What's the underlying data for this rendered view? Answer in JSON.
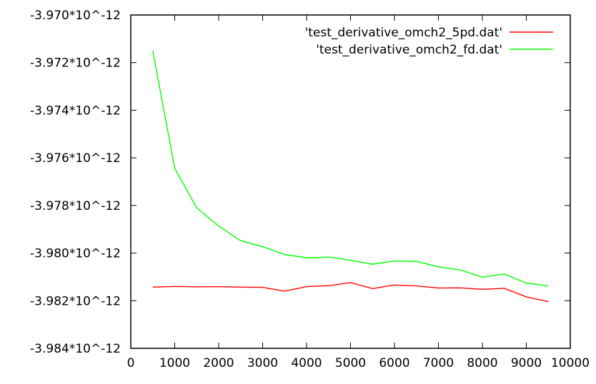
{
  "chart_data": {
    "type": "line",
    "title": "",
    "xlabel": "",
    "ylabel": "",
    "xlim": [
      0,
      10000
    ],
    "ylim": [
      -3.984e-12,
      -3.97e-12
    ],
    "grid": false,
    "legend_position": "top-right",
    "x_ticks": [
      {
        "value": 0,
        "label": "0"
      },
      {
        "value": 1000,
        "label": "1000"
      },
      {
        "value": 2000,
        "label": "2000"
      },
      {
        "value": 3000,
        "label": "3000"
      },
      {
        "value": 4000,
        "label": "4000"
      },
      {
        "value": 5000,
        "label": "5000"
      },
      {
        "value": 6000,
        "label": "6000"
      },
      {
        "value": 7000,
        "label": "7000"
      },
      {
        "value": 8000,
        "label": "8000"
      },
      {
        "value": 9000,
        "label": "9000"
      },
      {
        "value": 10000,
        "label": "10000"
      }
    ],
    "y_ticks": [
      {
        "value": -3.97e-12,
        "label": "-3.970*10^-12"
      },
      {
        "value": -3.972e-12,
        "label": "-3.972*10^-12"
      },
      {
        "value": -3.974e-12,
        "label": "-3.974*10^-12"
      },
      {
        "value": -3.976e-12,
        "label": "-3.976*10^-12"
      },
      {
        "value": -3.978e-12,
        "label": "-3.978*10^-12"
      },
      {
        "value": -3.98e-12,
        "label": "-3.980*10^-12"
      },
      {
        "value": -3.982e-12,
        "label": "-3.982*10^-12"
      },
      {
        "value": -3.984e-12,
        "label": "-3.984*10^-12"
      }
    ],
    "x": [
      500,
      1000,
      1500,
      2000,
      2500,
      3000,
      3500,
      4000,
      4500,
      5000,
      5500,
      6000,
      6500,
      7000,
      7500,
      8000,
      8500,
      9000,
      9500
    ],
    "series": [
      {
        "name": "'test_derivative_omch2_5pd.dat'",
        "color": "#ff0000",
        "values": [
          -3.98143e-12,
          -3.9814e-12,
          -3.98142e-12,
          -3.98141e-12,
          -3.98143e-12,
          -3.98144e-12,
          -3.9816e-12,
          -3.98141e-12,
          -3.98137e-12,
          -3.98124e-12,
          -3.98149e-12,
          -3.98134e-12,
          -3.98138e-12,
          -3.98147e-12,
          -3.98146e-12,
          -3.98152e-12,
          -3.98148e-12,
          -3.98184e-12,
          -3.98204e-12
        ]
      },
      {
        "name": "'test_derivative_omch2_fd.dat'",
        "color": "#00ff00",
        "values": [
          -3.9715e-12,
          -3.97644e-12,
          -3.9781e-12,
          -3.97886e-12,
          -3.97948e-12,
          -3.97973e-12,
          -3.98006e-12,
          -3.9802e-12,
          -3.98017e-12,
          -3.9803e-12,
          -3.98047e-12,
          -3.98033e-12,
          -3.98035e-12,
          -3.98058e-12,
          -3.98071e-12,
          -3.98101e-12,
          -3.98088e-12,
          -3.98126e-12,
          -3.98138e-12
        ]
      }
    ]
  }
}
